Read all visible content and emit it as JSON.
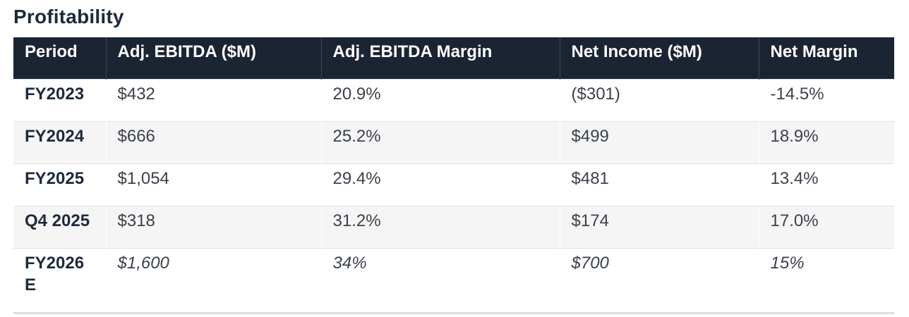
{
  "page": {
    "title": "Profitability"
  },
  "table": {
    "columns": [
      "Period",
      "Adj. EBITDA ($M)",
      "Adj. EBITDA Margin",
      "Net Income ($M)",
      "Net Margin"
    ],
    "rows": [
      {
        "period": "FY2023",
        "values": [
          "$432",
          "20.9%",
          "($301)",
          "-14.5%"
        ],
        "estimate": false
      },
      {
        "period": "FY2024",
        "values": [
          "$666",
          "25.2%",
          "$499",
          "18.9%"
        ],
        "estimate": false
      },
      {
        "period": "FY2025",
        "values": [
          "$1,054",
          "29.4%",
          "$481",
          "13.4%"
        ],
        "estimate": false
      },
      {
        "period": "Q4 2025",
        "values": [
          "$318",
          "31.2%",
          "$174",
          "17.0%"
        ],
        "estimate": false
      },
      {
        "period": "FY2026 E",
        "values": [
          "$1,600",
          "34%",
          "$700",
          "15%"
        ],
        "estimate": true
      }
    ]
  },
  "colors": {
    "header_bg": "#1b2433",
    "header_text": "#ffffff",
    "title_color": "#1e2a3c",
    "period_color": "#1e2a3c",
    "value_color": "#3b414b",
    "alt_row_bg": "#f5f5f5",
    "table_bottom_border": "#dcdcdc"
  }
}
